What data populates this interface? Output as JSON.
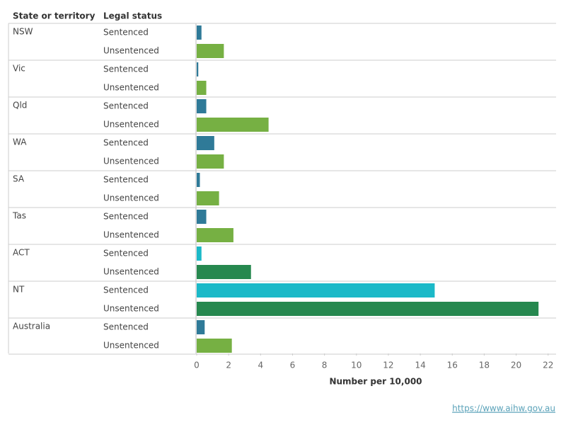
{
  "chart_data": {
    "type": "bar",
    "orientation": "horizontal",
    "category_header": "State or territory",
    "series_header": "Legal status",
    "categories": [
      "NSW",
      "Vic",
      "Qld",
      "WA",
      "SA",
      "Tas",
      "ACT",
      "NT",
      "Australia"
    ],
    "series": [
      {
        "name": "Sentenced",
        "values": [
          0.3,
          0.1,
          0.6,
          1.1,
          0.2,
          0.6,
          0.3,
          14.9,
          0.5
        ],
        "colors": [
          "#2f7a98",
          "#2f7a98",
          "#2f7a98",
          "#2f7a98",
          "#2f7a98",
          "#2f7a98",
          "#1bb9c8",
          "#1bb9c8",
          "#2f7a98"
        ]
      },
      {
        "name": "Unsentenced",
        "values": [
          1.7,
          0.6,
          4.5,
          1.7,
          1.4,
          2.3,
          3.4,
          21.4,
          2.2
        ],
        "colors": [
          "#76b043",
          "#76b043",
          "#76b043",
          "#76b043",
          "#76b043",
          "#76b043",
          "#26884f",
          "#26884f",
          "#76b043"
        ]
      }
    ],
    "xlim": [
      0,
      22.5
    ],
    "xticks": [
      0,
      2,
      4,
      6,
      8,
      10,
      12,
      14,
      16,
      18,
      20,
      22
    ],
    "xlabel": "Number per 10,000",
    "source": "https://www.aihw.gov.au"
  }
}
